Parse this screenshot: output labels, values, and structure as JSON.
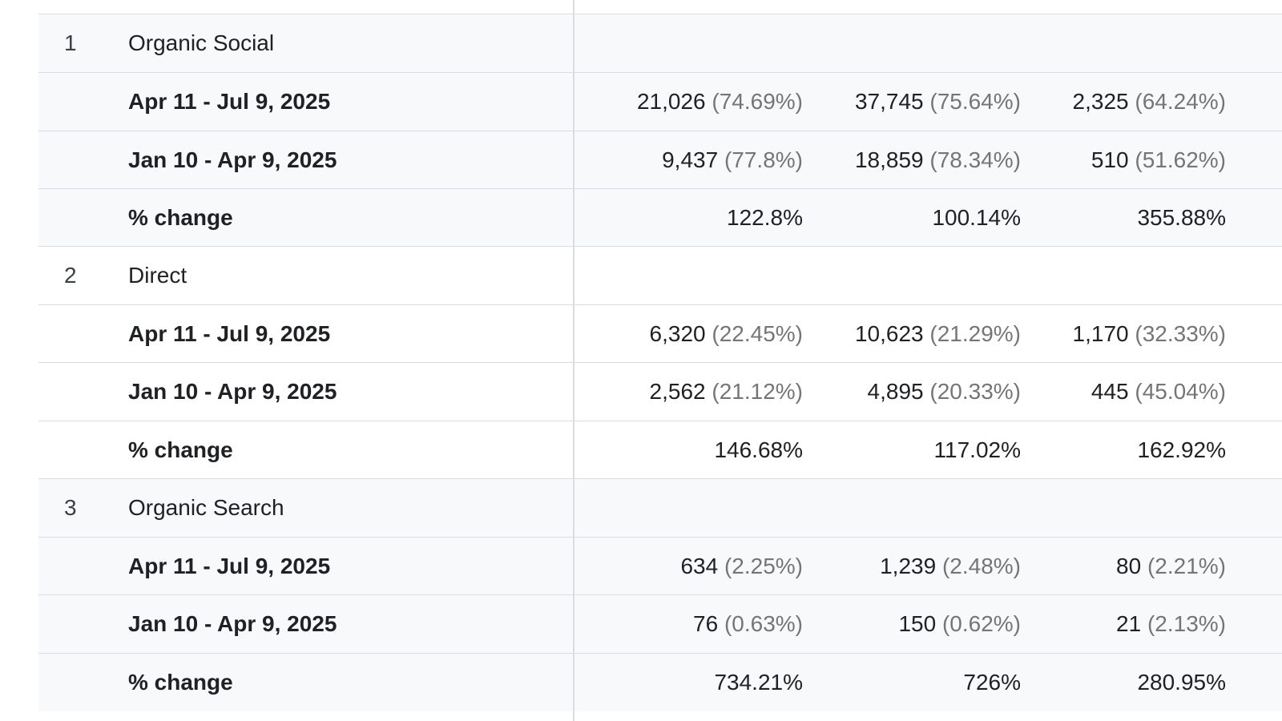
{
  "groups": [
    {
      "rank": "1",
      "name": "Organic Social",
      "rows": [
        {
          "label": "Apr 11 - Jul 9, 2025",
          "c1": "21,026",
          "c1_pct": " (74.69%)",
          "c2": "37,745",
          "c2_pct": " (75.64%)",
          "c3": "2,325",
          "c3_pct": " (64.24%)"
        },
        {
          "label": "Jan 10 - Apr 9, 2025",
          "c1": "9,437",
          "c1_pct": " (77.8%)",
          "c2": "18,859",
          "c2_pct": " (78.34%)",
          "c3": "510",
          "c3_pct": " (51.62%)"
        },
        {
          "label": "% change",
          "c1": "122.8%",
          "c1_pct": "",
          "c2": "100.14%",
          "c2_pct": "",
          "c3": "355.88%",
          "c3_pct": ""
        }
      ]
    },
    {
      "rank": "2",
      "name": "Direct",
      "rows": [
        {
          "label": "Apr 11 - Jul 9, 2025",
          "c1": "6,320",
          "c1_pct": " (22.45%)",
          "c2": "10,623",
          "c2_pct": " (21.29%)",
          "c3": "1,170",
          "c3_pct": " (32.33%)"
        },
        {
          "label": "Jan 10 - Apr 9, 2025",
          "c1": "2,562",
          "c1_pct": " (21.12%)",
          "c2": "4,895",
          "c2_pct": " (20.33%)",
          "c3": "445",
          "c3_pct": " (45.04%)"
        },
        {
          "label": "% change",
          "c1": "146.68%",
          "c1_pct": "",
          "c2": "117.02%",
          "c2_pct": "",
          "c3": "162.92%",
          "c3_pct": ""
        }
      ]
    },
    {
      "rank": "3",
      "name": "Organic Search",
      "rows": [
        {
          "label": "Apr 11 - Jul 9, 2025",
          "c1": "634",
          "c1_pct": " (2.25%)",
          "c2": "1,239",
          "c2_pct": " (2.48%)",
          "c3": "80",
          "c3_pct": " (2.21%)"
        },
        {
          "label": "Jan 10 - Apr 9, 2025",
          "c1": "76",
          "c1_pct": " (0.63%)",
          "c2": "150",
          "c2_pct": " (0.62%)",
          "c3": "21",
          "c3_pct": " (2.13%)"
        },
        {
          "label": "% change",
          "c1": "734.21%",
          "c1_pct": "",
          "c2": "726%",
          "c2_pct": "",
          "c3": "280.95%",
          "c3_pct": ""
        }
      ]
    }
  ],
  "colors": {
    "row_shaded": "#f8f9fa",
    "row_white": "#ffffff",
    "border": "#dadce0",
    "text": "#202124",
    "muted_pct": "#757575"
  }
}
